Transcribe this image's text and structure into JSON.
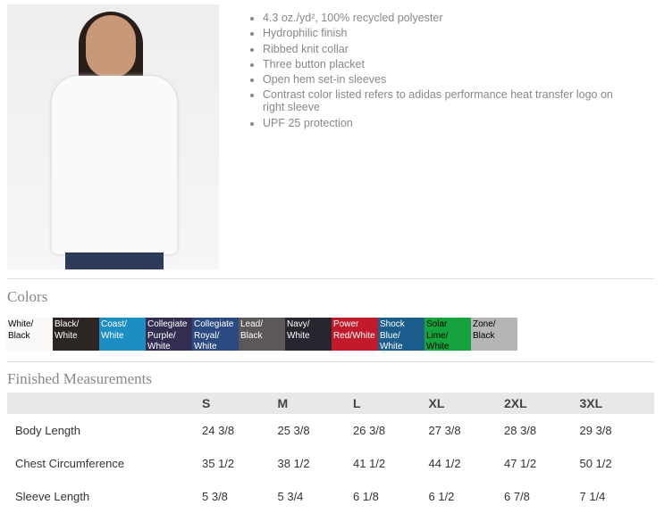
{
  "features": [
    "4.3 oz./yd², 100% recycled polyester",
    "Hydrophilic finish",
    "Ribbed knit collar",
    "Three button placket",
    "Open hem set-in sleeves",
    "Contrast color listed refers to adidas performance heat transfer logo on right sleeve",
    "UPF 25 protection"
  ],
  "colors_title": "Colors",
  "colors": [
    {
      "label": "White/ Black",
      "color": "#fbf8f8",
      "text": "#000"
    },
    {
      "label": "Black/ White",
      "color": "#2b2624",
      "text": "#fff"
    },
    {
      "label": "Coast/ White",
      "color": "#1c8ec4",
      "text": "#fff"
    },
    {
      "label": "Collegiate Purple/ White",
      "color": "#322e52",
      "text": "#fff"
    },
    {
      "label": "Collegiate Royal/ White",
      "color": "#2b4a82",
      "text": "#fff"
    },
    {
      "label": "Lead/ Black",
      "color": "#5b5857",
      "text": "#fff"
    },
    {
      "label": "Navy/ White",
      "color": "#26272e",
      "text": "#fff"
    },
    {
      "label": "Power Red/White",
      "color": "#c21a2a",
      "text": "#fff"
    },
    {
      "label": "Shock Blue/ White",
      "color": "#1b5d8c",
      "text": "#fff"
    },
    {
      "label": "Solar Lime/ White",
      "color": "#14a33c",
      "text": "#000"
    },
    {
      "label": "Zone/ Black",
      "color": "#b5b5b8",
      "text": "#000"
    }
  ],
  "measurements_title": "Finished Measurements",
  "measurements": {
    "sizes": [
      "S",
      "M",
      "L",
      "XL",
      "2XL",
      "3XL"
    ],
    "rows": [
      {
        "label": "Body Length",
        "values": [
          "24 3/8",
          "25 3/8",
          "26 3/8",
          "27 3/8",
          "28 3/8",
          "29 3/8"
        ]
      },
      {
        "label": "Chest Circumference",
        "values": [
          "35 1/2",
          "38 1/2",
          "41 1/2",
          "44 1/2",
          "47 1/2",
          "50 1/2"
        ]
      },
      {
        "label": "Sleeve Length",
        "values": [
          "5 3/8",
          "5 3/4",
          "6 1/8",
          "6 1/2",
          "6 7/8",
          "7 1/4"
        ]
      }
    ]
  }
}
